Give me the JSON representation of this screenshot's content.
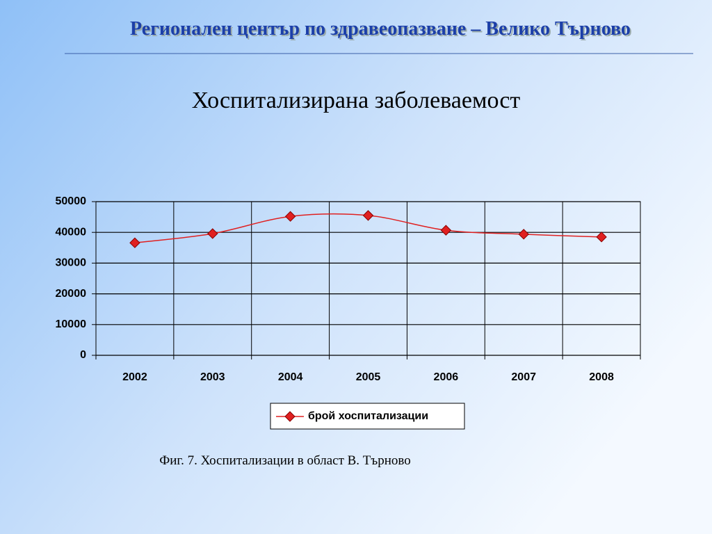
{
  "slide": {
    "header": "Регионален център по здравеопазване – Велико Търново",
    "caption": "Фиг. 7. Хоспитализации в област В. Търново"
  },
  "chart_data": {
    "type": "line",
    "title": "Хоспитализирана заболеваемост",
    "categories": [
      "2002",
      "2003",
      "2004",
      "2005",
      "2006",
      "2007",
      "2008"
    ],
    "series": [
      {
        "name": "брой хоспитализации",
        "color": "#e02020",
        "values": [
          36600,
          39600,
          45200,
          45500,
          40700,
          39400,
          38500
        ]
      }
    ],
    "ylim": [
      0,
      50000
    ],
    "yticks": [
      0,
      10000,
      20000,
      30000,
      40000,
      50000
    ],
    "grid": true,
    "legend": "bottom"
  }
}
